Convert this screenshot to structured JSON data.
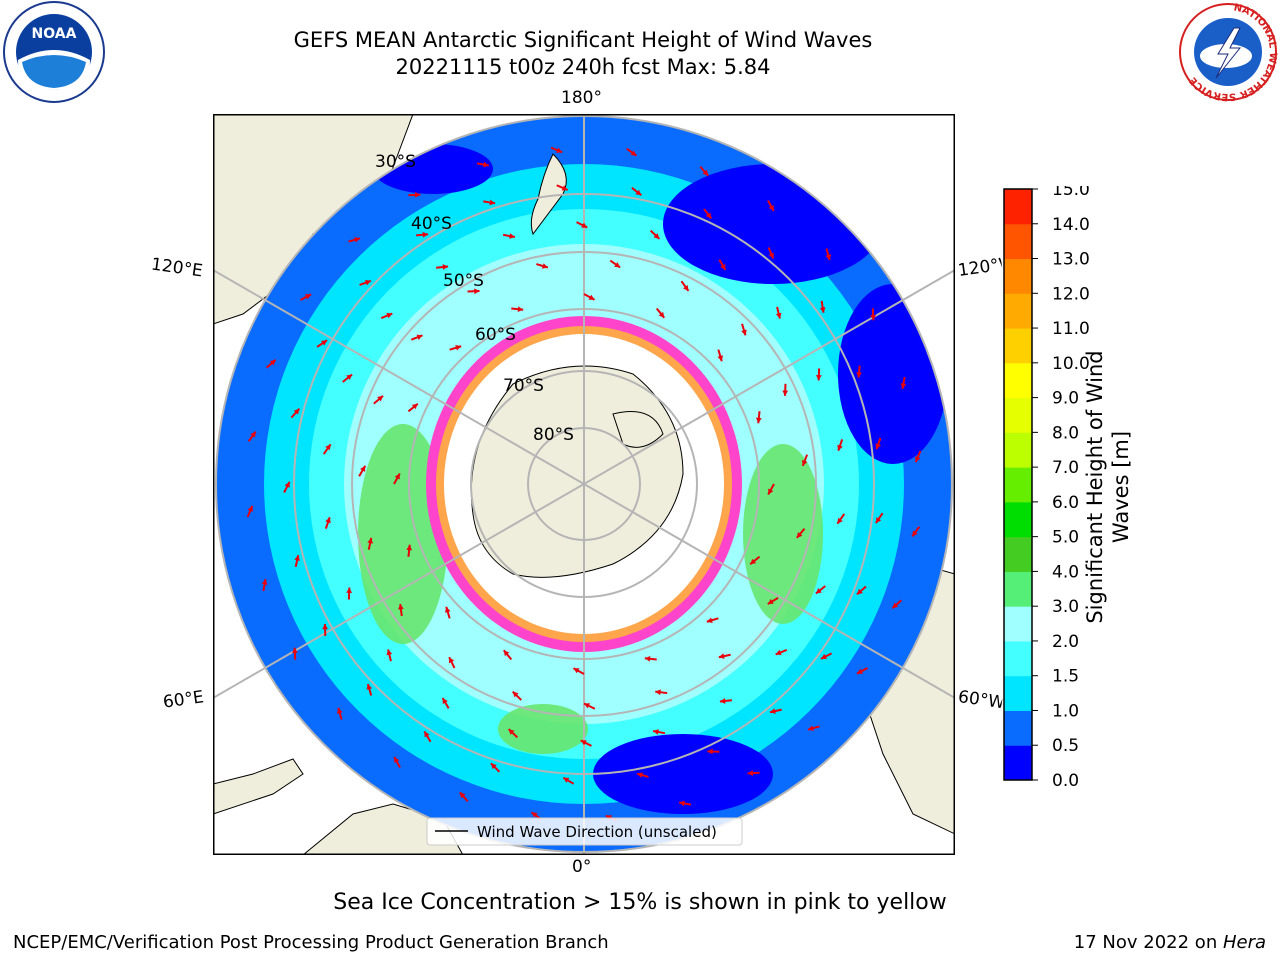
{
  "title": {
    "line1": "GEFS MEAN Antarctic Significant Height of Wind Waves",
    "line2": "20221115 t00z 240h fcst   Max: 5.84"
  },
  "map": {
    "projection": "south polar stereographic",
    "longitude_labels": {
      "top": "180°",
      "bottom": "0°",
      "upper_left": "120°E",
      "upper_right": "120°W",
      "lower_left": "60°E",
      "lower_right": "60°W"
    },
    "latitude_labels": [
      "30°S",
      "40°S",
      "50°S",
      "60°S",
      "70°S",
      "80°S"
    ],
    "legend": "Wind Wave Direction (unscaled)",
    "colors": {
      "ocean_deep_blue": "#0000ff",
      "ocean_blue": "#0a6cff",
      "ocean_cyan": "#00ffff",
      "ocean_light_cyan": "#7affff",
      "wave_green": "#66e66e",
      "land": "#efeedc",
      "ice_pink": "#ff44cc",
      "ice_orange": "#ffa64d",
      "arrow": "#e8000b"
    }
  },
  "colorbar": {
    "label": "Significant Height of Wind Waves [m]",
    "ticks": [
      "0.0",
      "0.5",
      "1.0",
      "1.5",
      "2.0",
      "3.0",
      "4.0",
      "5.0",
      "6.0",
      "7.0",
      "8.0",
      "9.0",
      "10.0",
      "11.0",
      "12.0",
      "13.0",
      "14.0",
      "15.0"
    ],
    "colors": [
      "#0000ff",
      "#0a6cff",
      "#00e5ff",
      "#44ffff",
      "#a0ffff",
      "#55ee77",
      "#44cc22",
      "#00dd00",
      "#66ee00",
      "#bbff00",
      "#e6ff00",
      "#ffff00",
      "#ffd000",
      "#ffaa00",
      "#ff8800",
      "#ff5500",
      "#ff2200"
    ]
  },
  "note": "Sea Ice Concentration > 15% is shown in pink to yellow",
  "footer": {
    "left": "NCEP/EMC/Verification Post Processing Product Generation Branch",
    "right_prefix": "17 Nov 2022 on ",
    "right_italic": "Hera"
  },
  "logos": {
    "noaa": "NOAA",
    "nws_ring": "NATIONAL WEATHER SERVICE"
  }
}
